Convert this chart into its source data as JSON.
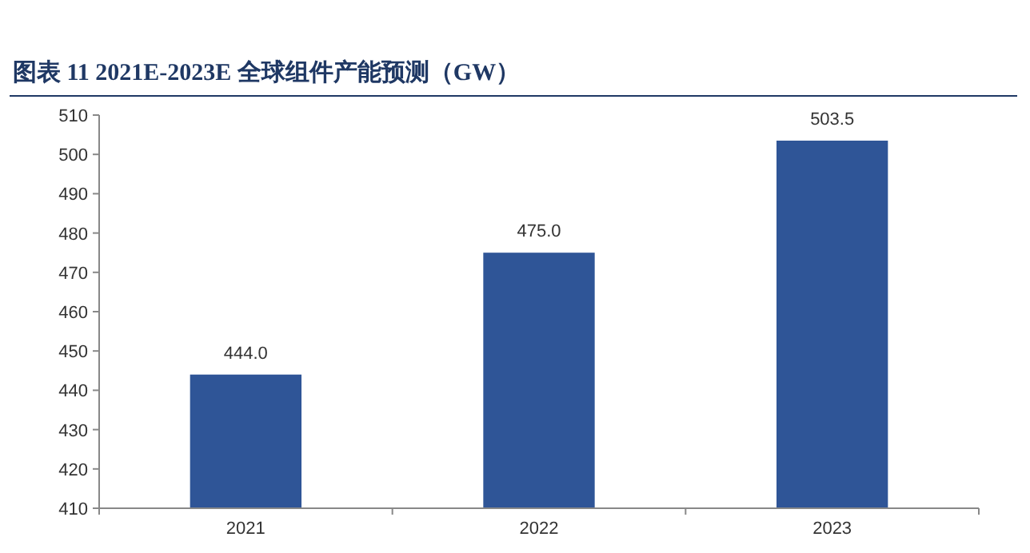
{
  "chart_data": {
    "type": "bar",
    "title": "图表 11   2021E-2023E 全球组件产能预测（GW）",
    "categories": [
      "2021",
      "2022",
      "2023"
    ],
    "values": [
      444.0,
      475.0,
      503.5
    ],
    "value_labels": [
      "444.0",
      "475.0",
      "503.5"
    ],
    "color": "#2f5597",
    "ylim": [
      410,
      510
    ],
    "yticks": [
      410,
      420,
      430,
      440,
      450,
      460,
      470,
      480,
      490,
      500,
      510
    ]
  }
}
